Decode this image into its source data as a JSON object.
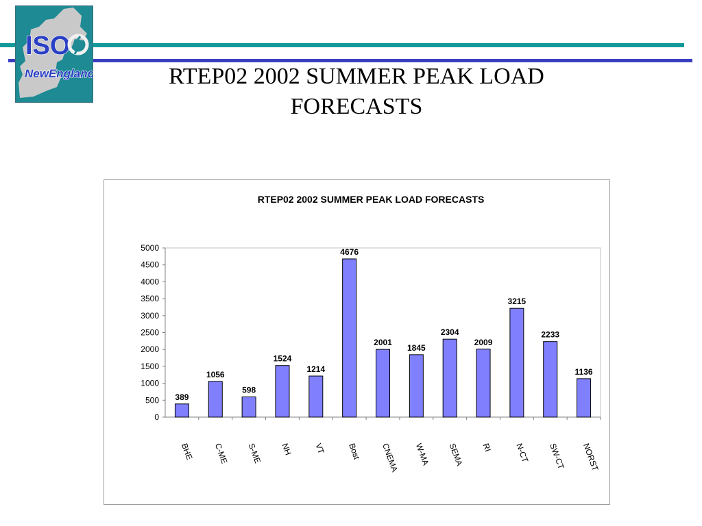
{
  "slide": {
    "title_line1": "RTEP02  2002 SUMMER PEAK LOAD",
    "title_line2": "FORECASTS"
  },
  "logo": {
    "text_iso": "ISO",
    "text_region": "NewEngland"
  },
  "colors": {
    "header_teal": "#129a9a",
    "header_blue": "#3a3fc0",
    "logo_background": "#1e8a94",
    "logo_map": "#c9c9c9",
    "logo_text": "#2a3fc4",
    "bar_fill": "#8080ff",
    "bar_stroke": "#000000",
    "grid": "#c0c0c0"
  },
  "chart_data": {
    "type": "bar",
    "title": "RTEP02 2002 SUMMER PEAK LOAD FORECASTS",
    "xlabel": "",
    "ylabel": "",
    "categories": [
      "BHE",
      "C-ME",
      "S-ME",
      "NH",
      "VT",
      "Bost",
      "CNEMA",
      "W-MA",
      "SEMA",
      "RI",
      "N-CT",
      "SW-CT",
      "NORST"
    ],
    "values": [
      389,
      1056,
      598,
      1524,
      1214,
      4676,
      2001,
      1845,
      2304,
      2009,
      3215,
      2233,
      1136
    ],
    "data_labels": [
      "389",
      "1056",
      "598",
      "1524",
      "1214",
      "4676",
      "2001",
      "1845",
      "2304",
      "2009",
      "3215",
      "2233",
      "1136"
    ],
    "yticks": [
      "0",
      "500",
      "1000",
      "1500",
      "2000",
      "2500",
      "3000",
      "3500",
      "4000",
      "4500",
      "5000"
    ],
    "ylim": [
      0,
      5000
    ],
    "grid": false,
    "legend": "none"
  }
}
